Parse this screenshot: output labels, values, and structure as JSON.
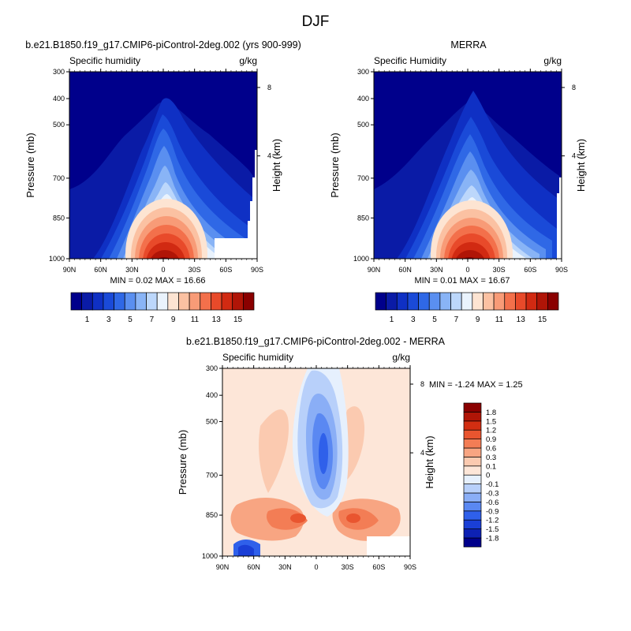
{
  "figure": {
    "title": "DJF"
  },
  "chart_data": [
    {
      "type": "heatmap",
      "title": "b.e21.B1850.f19_g17.CMIP6-piControl-2deg.002 (yrs 900-999)",
      "left_label": "Specific humidity",
      "units": "g/kg",
      "ylabel": "Pressure (mb)",
      "right_axis_label": "Height (km)",
      "x_ticks": [
        "90N",
        "60N",
        "30N",
        "0",
        "30S",
        "60S",
        "90S"
      ],
      "y_ticks": [
        "300",
        "400",
        "500",
        "700",
        "850",
        "1000"
      ],
      "right_ticks": [
        "8",
        "4"
      ],
      "stats": "MIN =  0.02  MAX =  16.66",
      "min": 0.02,
      "max": 16.66,
      "colorbar": {
        "levels": [
          0,
          1,
          2,
          3,
          4,
          5,
          6,
          7,
          8,
          9,
          10,
          11,
          12,
          13,
          14,
          15,
          16
        ],
        "labels": [
          "1",
          "3",
          "5",
          "7",
          "9",
          "11",
          "13",
          "15"
        ],
        "colors": [
          "#00008b",
          "#0a1ba6",
          "#0f30c4",
          "#1a4ad8",
          "#2f68e6",
          "#5a8ff0",
          "#89b4f6",
          "#bcd7fb",
          "#eaf3fd",
          "#fde4d2",
          "#fbc1a2",
          "#f89b77",
          "#f3704b",
          "#e84a2a",
          "#d12a12",
          "#b01507",
          "#8a0000"
        ]
      }
    },
    {
      "type": "heatmap",
      "title": "MERRA",
      "left_label": "Specific Humidity",
      "units": "g/kg",
      "ylabel": "Pressure (mb)",
      "right_axis_label": "Height (km)",
      "x_ticks": [
        "90N",
        "60N",
        "30N",
        "0",
        "30S",
        "60S",
        "90S"
      ],
      "y_ticks": [
        "300",
        "400",
        "500",
        "700",
        "850",
        "1000"
      ],
      "right_ticks": [
        "8",
        "4"
      ],
      "stats": "MIN =  0.01  MAX =  16.67",
      "min": 0.01,
      "max": 16.67,
      "colorbar": {
        "levels": [
          0,
          1,
          2,
          3,
          4,
          5,
          6,
          7,
          8,
          9,
          10,
          11,
          12,
          13,
          14,
          15,
          16
        ],
        "labels": [
          "1",
          "3",
          "5",
          "7",
          "9",
          "11",
          "13",
          "15"
        ],
        "colors": [
          "#00008b",
          "#0a1ba6",
          "#0f30c4",
          "#1a4ad8",
          "#2f68e6",
          "#5a8ff0",
          "#89b4f6",
          "#bcd7fb",
          "#eaf3fd",
          "#fde4d2",
          "#fbc1a2",
          "#f89b77",
          "#f3704b",
          "#e84a2a",
          "#d12a12",
          "#b01507",
          "#8a0000"
        ]
      }
    },
    {
      "type": "heatmap",
      "title": "b.e21.B1850.f19_g17.CMIP6-piControl-2deg.002 - MERRA",
      "left_label": "Specific humidity",
      "units": "g/kg",
      "ylabel": "Pressure (mb)",
      "right_axis_label": "Height (km)",
      "x_ticks": [
        "90N",
        "60N",
        "30N",
        "0",
        "30S",
        "60S",
        "90S"
      ],
      "y_ticks": [
        "300",
        "400",
        "500",
        "700",
        "850",
        "1000"
      ],
      "right_ticks": [
        "8",
        "4"
      ],
      "stats": "MIN = -1.24  MAX =   1.25",
      "min": -1.24,
      "max": 1.25,
      "colorbar": {
        "levels": [
          -1.8,
          -1.5,
          -1.2,
          -0.9,
          -0.6,
          -0.3,
          -0.1,
          0,
          0.1,
          0.3,
          0.6,
          0.9,
          1.2,
          1.5,
          1.8
        ],
        "labels": [
          "-1.8",
          "-1.5",
          "-1.2",
          "-0.9",
          "-0.6",
          "-0.3",
          "-0.1",
          "0",
          "0.1",
          "0.3",
          "0.6",
          "0.9",
          "1.2",
          "1.5",
          "1.8"
        ],
        "colors": [
          "#00008b",
          "#0d21b4",
          "#1a3fd6",
          "#2f60ea",
          "#5a88f2",
          "#8aaef6",
          "#b8d0fa",
          "#e6f0fd",
          "#fde6d8",
          "#fbcab0",
          "#f8a582",
          "#f37d55",
          "#e9552f",
          "#d22e12",
          "#b01507",
          "#8a0000"
        ]
      }
    }
  ]
}
